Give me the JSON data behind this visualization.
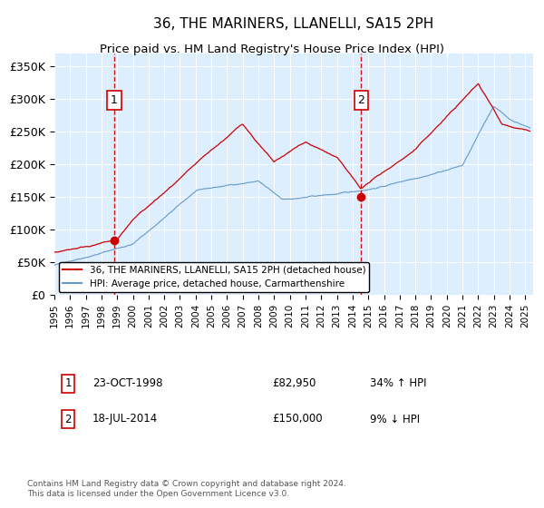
{
  "title": "36, THE MARINERS, LLANELLI, SA15 2PH",
  "subtitle": "Price paid vs. HM Land Registry's House Price Index (HPI)",
  "ylabel_ticks": [
    "£0",
    "£50K",
    "£100K",
    "£150K",
    "£200K",
    "£250K",
    "£300K",
    "£350K"
  ],
  "ytick_values": [
    0,
    50000,
    100000,
    150000,
    200000,
    250000,
    300000,
    350000
  ],
  "ylim": [
    0,
    370000
  ],
  "xlim_start": 1995.0,
  "xlim_end": 2025.5,
  "legend_line1": "36, THE MARINERS, LLANELLI, SA15 2PH (detached house)",
  "legend_line2": "HPI: Average price, detached house, Carmarthenshire",
  "label1_num": "1",
  "label1_date": "23-OCT-1998",
  "label1_price": "£82,950",
  "label1_hpi": "34% ↑ HPI",
  "label2_num": "2",
  "label2_date": "18-JUL-2014",
  "label2_price": "£150,000",
  "label2_hpi": "9% ↓ HPI",
  "footnote": "Contains HM Land Registry data © Crown copyright and database right 2024.\nThis data is licensed under the Open Government Licence v3.0.",
  "purchase1_year": 1998.81,
  "purchase1_price": 82950,
  "purchase2_year": 2014.54,
  "purchase2_price": 150000,
  "red_line_color": "#cc0000",
  "blue_line_color": "#6699cc",
  "background_color": "#ddeeff",
  "grid_color": "#ffffff",
  "marker_color": "#cc0000",
  "vline_color": "#cc0000"
}
